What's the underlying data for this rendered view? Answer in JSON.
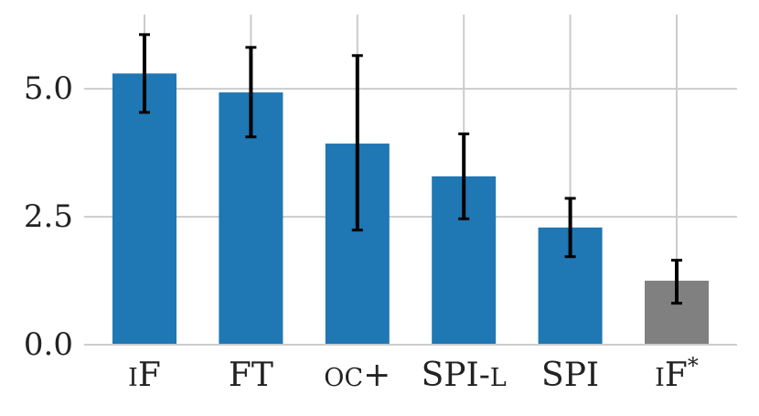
{
  "chart_data": {
    "type": "bar",
    "categories": [
      {
        "label": "iF",
        "small_caps": true,
        "superscript": ""
      },
      {
        "label": "FT",
        "small_caps": false,
        "superscript": ""
      },
      {
        "label": "oc+",
        "small_caps": true,
        "superscript": ""
      },
      {
        "label": "SPI-l",
        "small_caps": false,
        "superscript": ""
      },
      {
        "label": "SPI",
        "small_caps": false,
        "superscript": ""
      },
      {
        "label": "iF",
        "small_caps": true,
        "superscript": "*"
      }
    ],
    "values": [
      5.3,
      4.93,
      3.93,
      3.29,
      2.29,
      1.25
    ],
    "error_low": [
      4.54,
      4.06,
      2.24,
      2.46,
      1.72,
      0.81
    ],
    "error_high": [
      6.06,
      5.81,
      5.65,
      4.12,
      2.86,
      1.65
    ],
    "bar_colors": [
      "#1f77b4",
      "#1f77b4",
      "#1f77b4",
      "#1f77b4",
      "#1f77b4",
      "#808080"
    ],
    "error_color": "#000000",
    "ylim": [
      0,
      6.45
    ],
    "yticks": [
      0.0,
      2.5,
      5.0
    ],
    "ytick_labels": [
      "0.0",
      "2.5",
      "5.0"
    ],
    "grid": true,
    "grid_color": "#cccccc",
    "title": "",
    "xlabel": "",
    "ylabel": ""
  }
}
